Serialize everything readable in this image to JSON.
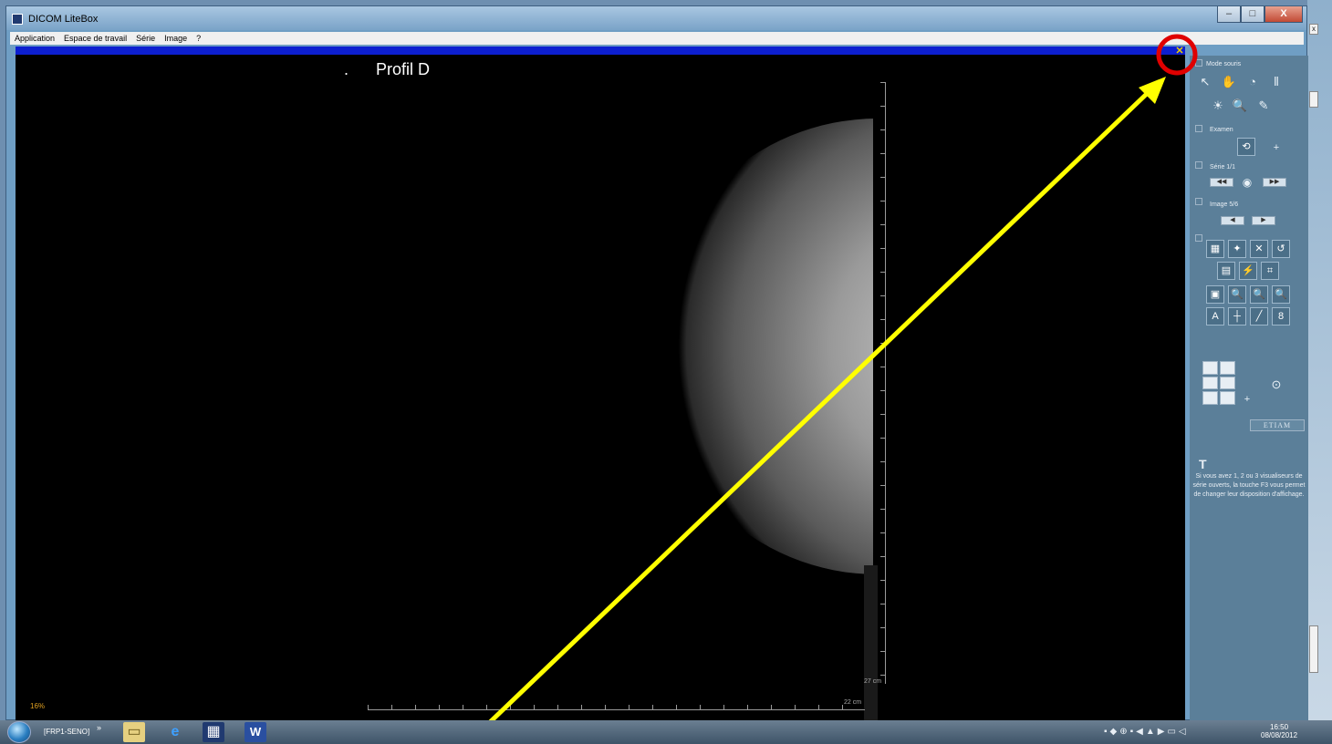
{
  "window": {
    "title": "DICOM LiteBox",
    "controls": {
      "minimize": "–",
      "maximize": "□",
      "close": "X"
    }
  },
  "menu": [
    "Application",
    "Espace de travail",
    "Série",
    "Image",
    "?"
  ],
  "viewer": {
    "close_glyph": "✕",
    "title_dot": ".",
    "title": "Profil D",
    "vertical_scale_label": "27 cm",
    "horizontal_scale_label": "22 cm",
    "zoom": "16%"
  },
  "panel": {
    "mode_label": "Mode souris",
    "exam_label": "Examen",
    "series_label": "Série 1/1",
    "image_label": "Image 5/6",
    "brand": "ETIAM",
    "help_icon": "T",
    "help_text": "Si vous avez 1, 2 ou 3 visualiseurs de série ouverts, la touche F3 vous permet de changer leur disposition d'affichage."
  },
  "taskbar": {
    "task_label": "[FRP1-SENO]",
    "chevron": "»",
    "time": "16:50",
    "date": "08/08/2012"
  },
  "colors": {
    "annotation_arrow": "#ffff00",
    "annotation_circle": "#e00000",
    "viewer_blue_bar": "#0d1fd0"
  }
}
